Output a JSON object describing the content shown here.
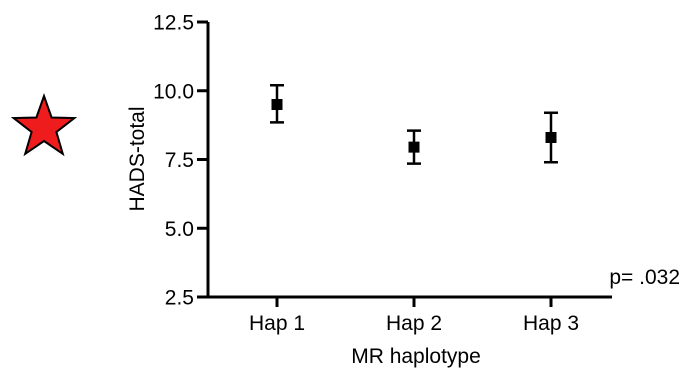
{
  "chart_data": {
    "type": "scatter",
    "xlabel": "MR haplotype",
    "ylabel": "HADS-total",
    "categories": [
      "Hap 1",
      "Hap 2",
      "Hap 3"
    ],
    "series": [
      {
        "values": [
          9.5,
          7.95,
          8.3
        ],
        "error_low": [
          8.85,
          7.35,
          7.4
        ],
        "error_high": [
          10.2,
          8.55,
          9.2
        ]
      }
    ],
    "ylim": [
      2.5,
      12.5
    ],
    "yticks": [
      "2.5",
      "5.0",
      "7.5",
      "10.0",
      "12.5"
    ],
    "ytick_values": [
      2.5,
      5.0,
      7.5,
      10.0,
      12.5
    ],
    "grid": false,
    "annotation": "p= .032",
    "marker_color": "#000000",
    "star_color": "#ee1c1c"
  }
}
